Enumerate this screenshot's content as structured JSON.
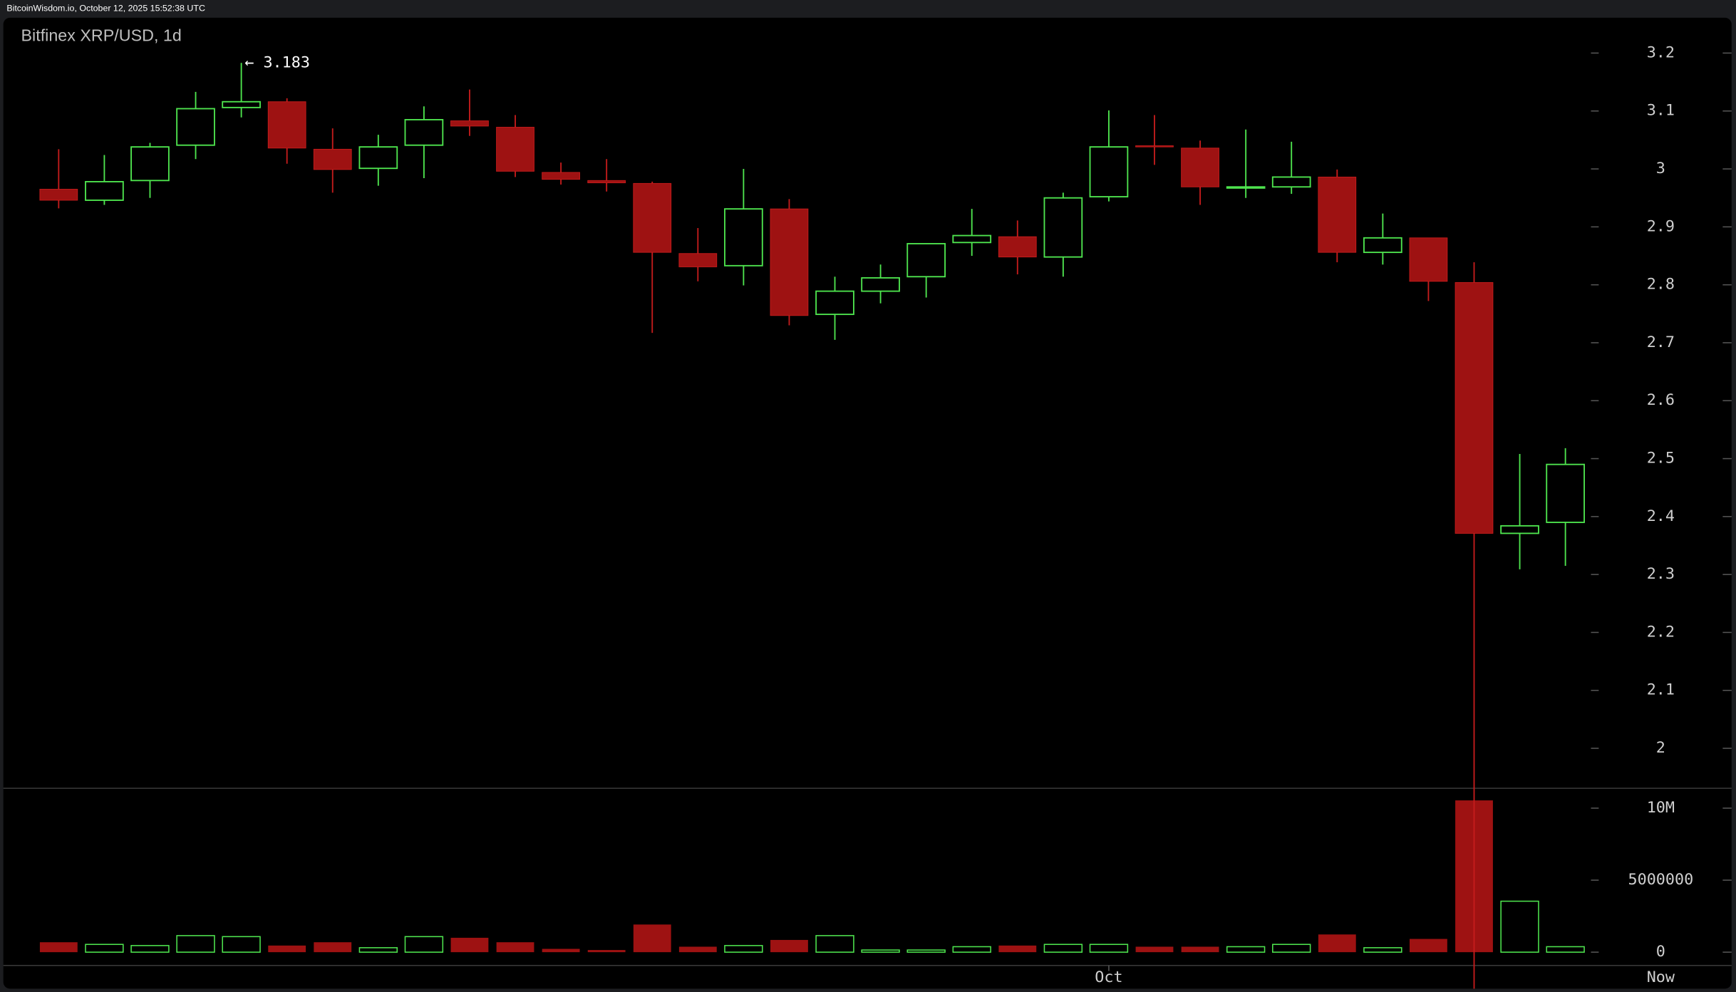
{
  "header": "BitcoinWisdom.io, October 12, 2025 15:52:38 UTC",
  "chart_data": {
    "type": "candlestick",
    "title": "Bitfinex XRP/USD, 1d",
    "max_label": "← 3.183",
    "now_label": "Now",
    "categories": [
      null,
      null,
      null,
      null,
      null,
      null,
      null,
      null,
      null,
      null,
      null,
      null,
      null,
      null,
      null,
      null,
      null,
      null,
      null,
      null,
      null,
      null,
      null,
      "Oct",
      null,
      null,
      null,
      null,
      null,
      null,
      null,
      null,
      null,
      null
    ],
    "open": [
      2.965,
      2.946,
      2.98,
      3.041,
      3.106,
      3.116,
      3.034,
      3.001,
      3.041,
      3.083,
      3.072,
      2.994,
      2.98,
      2.975,
      2.854,
      2.833,
      2.931,
      2.749,
      2.789,
      2.814,
      2.873,
      2.883,
      2.848,
      2.952,
      3.04,
      3.036,
      2.967,
      2.969,
      2.986,
      2.856,
      2.881,
      2.804,
      2.371,
      2.39
    ],
    "high": [
      3.034,
      3.024,
      3.045,
      3.133,
      3.183,
      3.122,
      3.07,
      3.059,
      3.108,
      3.137,
      3.093,
      3.011,
      3.017,
      2.978,
      2.898,
      3.0,
      2.948,
      2.814,
      2.835,
      2.871,
      2.931,
      2.911,
      2.959,
      3.101,
      3.093,
      3.049,
      3.068,
      3.047,
      2.999,
      2.923,
      2.881,
      2.839,
      2.508,
      2.518
    ],
    "low": [
      2.932,
      2.938,
      2.95,
      3.017,
      3.089,
      3.009,
      2.959,
      2.971,
      2.984,
      3.057,
      2.986,
      2.973,
      2.961,
      2.717,
      2.806,
      2.799,
      2.73,
      2.705,
      2.768,
      2.778,
      2.85,
      2.818,
      2.814,
      2.944,
      3.007,
      2.938,
      2.95,
      2.957,
      2.839,
      2.835,
      2.772,
      1.585,
      2.309,
      2.315
    ],
    "close": [
      2.946,
      2.978,
      3.038,
      3.104,
      3.116,
      3.036,
      2.999,
      3.038,
      3.085,
      3.074,
      2.996,
      2.982,
      2.976,
      2.856,
      2.831,
      2.931,
      2.747,
      2.789,
      2.812,
      2.871,
      2.885,
      2.848,
      2.95,
      3.038,
      3.038,
      2.969,
      2.969,
      2.986,
      2.856,
      2.881,
      2.806,
      2.371,
      2.384,
      2.49
    ],
    "volume": [
      690000,
      540000,
      460000,
      1150000,
      1080000,
      460000,
      690000,
      310000,
      1080000,
      1000000,
      690000,
      230000,
      150000,
      1920000,
      380000,
      460000,
      850000,
      1150000,
      150000,
      150000,
      380000,
      460000,
      540000,
      540000,
      380000,
      380000,
      380000,
      540000,
      1230000,
      310000,
      920000,
      10540000,
      3540000,
      380000
    ],
    "up_color": "#4ee44e",
    "down_color": "#9e1212",
    "down_wick_color": "#c41c1c",
    "ylim": [
      1.931,
      3.261
    ],
    "yticks": [
      2,
      2.1,
      2.2,
      2.3,
      2.4,
      2.5,
      2.6,
      2.7,
      2.8,
      2.9,
      3,
      3.1,
      3.2
    ],
    "y2lim": [
      -920000,
      11380000
    ],
    "y2ticks": [
      0,
      5000000,
      {
        "value": 10000000,
        "label": "10M"
      }
    ]
  }
}
